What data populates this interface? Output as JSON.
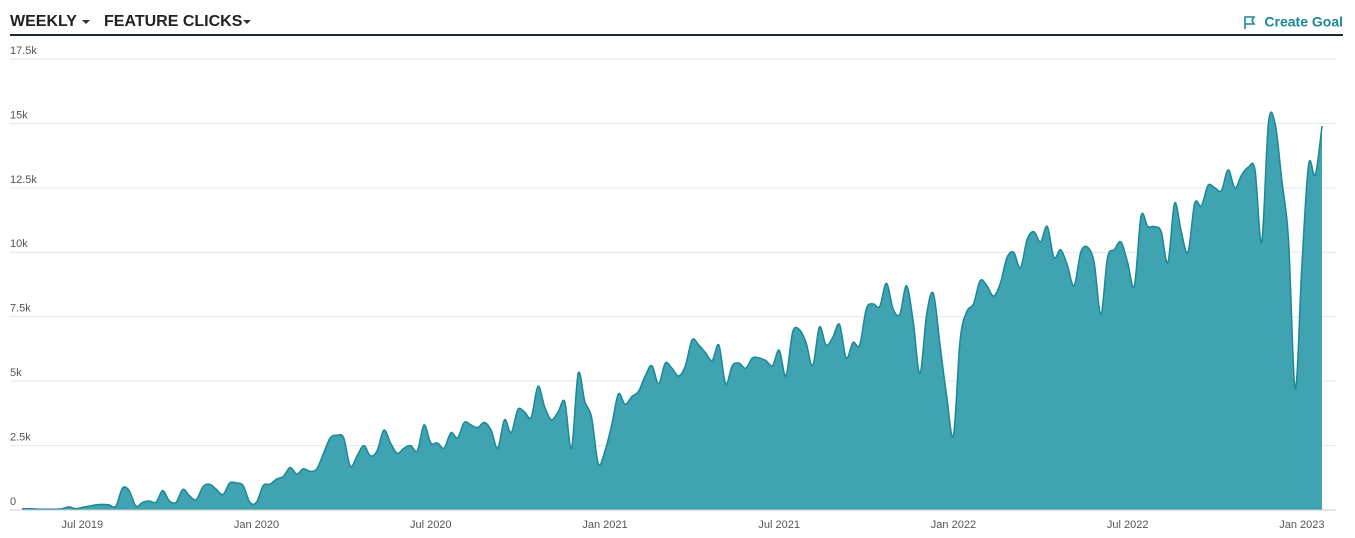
{
  "header": {
    "dropdowns": [
      "WEEKLY",
      "FEATURE CLICKS"
    ],
    "action": "Create Goal"
  },
  "chart_data": {
    "type": "area",
    "color": "#3fa3b2",
    "line_color": "#1c8796",
    "grid": true,
    "ylim": [
      0,
      17500
    ],
    "yticks": [
      0,
      {
        "value": 2500,
        "label": "2.5k"
      },
      {
        "value": 5000,
        "label": "5k"
      },
      {
        "value": 7500,
        "label": "7.5k"
      },
      {
        "value": 10000,
        "label": "10k"
      },
      {
        "value": 12500,
        "label": "12.5k"
      },
      {
        "value": 15000,
        "label": "15k"
      },
      {
        "value": 17500,
        "label": "17.5k"
      }
    ],
    "categories": [
      null,
      null,
      null,
      null,
      null,
      null,
      null,
      null,
      null,
      "Jul 2019",
      null,
      null,
      null,
      null,
      null,
      null,
      null,
      null,
      null,
      null,
      null,
      null,
      null,
      null,
      null,
      null,
      null,
      null,
      null,
      null,
      null,
      null,
      null,
      null,
      null,
      "Jan 2020",
      null,
      null,
      null,
      null,
      null,
      null,
      null,
      null,
      null,
      null,
      null,
      null,
      null,
      null,
      null,
      null,
      null,
      null,
      null,
      null,
      null,
      null,
      null,
      null,
      null,
      "Jul 2020",
      null,
      null,
      null,
      null,
      null,
      null,
      null,
      null,
      null,
      null,
      null,
      null,
      null,
      null,
      null,
      null,
      null,
      null,
      null,
      null,
      null,
      null,
      null,
      null,
      null,
      "Jan 2021",
      null,
      null,
      null,
      null,
      null,
      null,
      null,
      null,
      null,
      null,
      null,
      null,
      null,
      null,
      null,
      null,
      null,
      null,
      null,
      null,
      null,
      null,
      null,
      null,
      null,
      "Jul 2021",
      null,
      null,
      null,
      null,
      null,
      null,
      null,
      null,
      null,
      null,
      null,
      null,
      null,
      null,
      null,
      null,
      null,
      null,
      null,
      null,
      null,
      null,
      null,
      null,
      null,
      "Jan 2022",
      null,
      null,
      null,
      null,
      null,
      null,
      null,
      null,
      null,
      null,
      null,
      null,
      null,
      null,
      null,
      null,
      null,
      null,
      null,
      null,
      null,
      null,
      null,
      null,
      null,
      "Jul 2022",
      null,
      null,
      null,
      null,
      null,
      null,
      null,
      null,
      null,
      null,
      null,
      null,
      null,
      null,
      null,
      null,
      null,
      null,
      null,
      null,
      null,
      null,
      null,
      null,
      null,
      "Jan 2023",
      null,
      null,
      null
    ],
    "values": [
      50,
      50,
      40,
      30,
      30,
      30,
      50,
      120,
      50,
      100,
      150,
      200,
      220,
      200,
      150,
      850,
      750,
      150,
      300,
      350,
      300,
      750,
      350,
      300,
      800,
      550,
      400,
      900,
      1000,
      800,
      600,
      1050,
      1050,
      950,
      300,
      300,
      950,
      1000,
      1200,
      1300,
      1650,
      1400,
      1600,
      1500,
      1600,
      2200,
      2800,
      2900,
      2800,
      1700,
      2100,
      2500,
      2100,
      2300,
      3100,
      2600,
      2200,
      2400,
      2500,
      2300,
      3300,
      2600,
      2600,
      2400,
      3000,
      2800,
      3400,
      3300,
      3200,
      3400,
      3100,
      2400,
      3500,
      3000,
      3900,
      3800,
      3600,
      4800,
      4000,
      3500,
      3800,
      4200,
      2400,
      5300,
      4200,
      3600,
      1800,
      2300,
      3300,
      4500,
      4100,
      4400,
      4600,
      5200,
      5600,
      4900,
      5700,
      5500,
      5200,
      5600,
      6600,
      6400,
      6100,
      5800,
      6400,
      4900,
      5600,
      5700,
      5500,
      5900,
      5900,
      5800,
      5600,
      6200,
      5200,
      6900,
      7000,
      6500,
      5600,
      7100,
      6400,
      6700,
      7200,
      5900,
      6500,
      6400,
      7800,
      8000,
      7900,
      8800,
      7800,
      7600,
      8700,
      7300,
      5300,
      7600,
      8400,
      6400,
      4400,
      2900,
      6600,
      7700,
      8000,
      8900,
      8700,
      8300,
      8800,
      9800,
      10000,
      9400,
      10500,
      10800,
      10400,
      11000,
      9800,
      10100,
      9500,
      8700,
      10000,
      10200,
      9600,
      7600,
      9800,
      10100,
      10400,
      9600,
      8700,
      11400,
      11000,
      11000,
      10800,
      9600,
      11900,
      10800,
      10000,
      11900,
      11800,
      12600,
      12500,
      12400,
      13200,
      12500,
      13000,
      13300,
      13200,
      10400,
      15000,
      15000,
      12800,
      10500,
      4700,
      9500,
      13400,
      13000,
      14900
    ]
  }
}
